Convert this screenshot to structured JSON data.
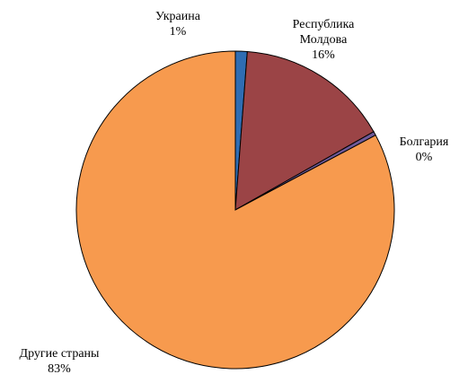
{
  "chart_data": {
    "type": "pie",
    "title": "",
    "slices": [
      {
        "label_lines": [
          "Украина"
        ],
        "pct_label": "1%",
        "value": 1.2,
        "color": "#2f6db3"
      },
      {
        "label_lines": [
          "Республика",
          "Молдова"
        ],
        "pct_label": "16%",
        "value": 15.6,
        "color": "#9b4446"
      },
      {
        "label_lines": [
          "Болгария"
        ],
        "pct_label": "0%",
        "value": 0.4,
        "color": "#6f5a9a"
      },
      {
        "label_lines": [
          "Другие страны"
        ],
        "pct_label": "83%",
        "value": 82.8,
        "color": "#f79a4e"
      }
    ],
    "start_angle": "12 o'clock",
    "direction": "clockwise",
    "legend": "none",
    "data_labels": "outside"
  }
}
